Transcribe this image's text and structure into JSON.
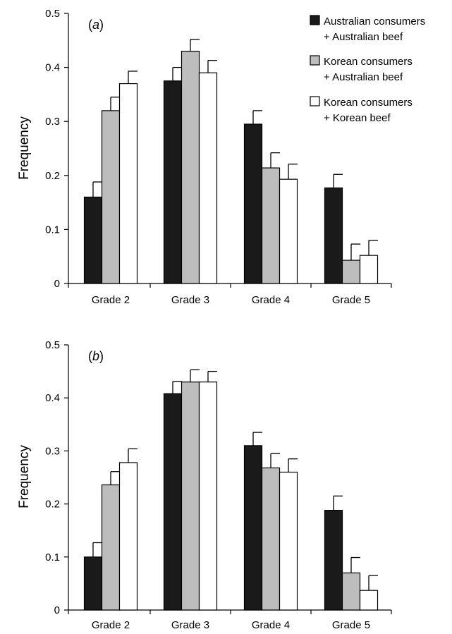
{
  "chart_data": [
    {
      "type": "bar",
      "panel_label": "a",
      "categories": [
        "Grade 2",
        "Grade 3",
        "Grade 4",
        "Grade 5"
      ],
      "series": [
        {
          "name": "Australian consumers + Australian beef",
          "values": [
            0.16,
            0.375,
            0.295,
            0.177
          ],
          "errors": [
            0.028,
            0.025,
            0.025,
            0.025
          ]
        },
        {
          "name": "Korean consumers + Australian beef",
          "values": [
            0.32,
            0.43,
            0.214,
            0.043
          ],
          "errors": [
            0.025,
            0.022,
            0.028,
            0.03
          ]
        },
        {
          "name": "Korean consumers + Korean beef",
          "values": [
            0.37,
            0.39,
            0.193,
            0.052
          ],
          "errors": [
            0.023,
            0.023,
            0.028,
            0.028
          ]
        }
      ],
      "series_colors": [
        "#1a1a1a",
        "#bdbdbd",
        "#ffffff"
      ],
      "ylabel": "Frequency",
      "ylim": [
        0,
        0.5
      ],
      "yticks": [
        "0",
        "0.1",
        "0.2",
        "0.3",
        "0.4",
        "0.5"
      ],
      "legend": {
        "placement": "top-right",
        "entries": [
          {
            "line1": "Australian consumers",
            "line2": "+ Australian beef"
          },
          {
            "line1": "Korean consumers",
            "line2": "+ Australian beef"
          },
          {
            "line1": "Korean consumers",
            "line2": "+ Korean beef"
          }
        ]
      },
      "grid": false
    },
    {
      "type": "bar",
      "panel_label": "b",
      "categories": [
        "Grade 2",
        "Grade 3",
        "Grade 4",
        "Grade 5"
      ],
      "series": [
        {
          "name": "Australian consumers + Australian beef",
          "values": [
            0.1,
            0.408,
            0.31,
            0.188
          ],
          "errors": [
            0.027,
            0.023,
            0.025,
            0.027
          ]
        },
        {
          "name": "Korean consumers + Australian beef",
          "values": [
            0.236,
            0.43,
            0.268,
            0.07
          ],
          "errors": [
            0.025,
            0.023,
            0.027,
            0.029
          ]
        },
        {
          "name": "Korean consumers + Korean beef",
          "values": [
            0.278,
            0.43,
            0.26,
            0.037
          ],
          "errors": [
            0.026,
            0.02,
            0.025,
            0.028
          ]
        }
      ],
      "series_colors": [
        "#1a1a1a",
        "#bdbdbd",
        "#ffffff"
      ],
      "ylabel": "Frequency",
      "ylim": [
        0,
        0.5
      ],
      "yticks": [
        "0",
        "0.1",
        "0.2",
        "0.3",
        "0.4",
        "0.5"
      ],
      "grid": false
    }
  ]
}
